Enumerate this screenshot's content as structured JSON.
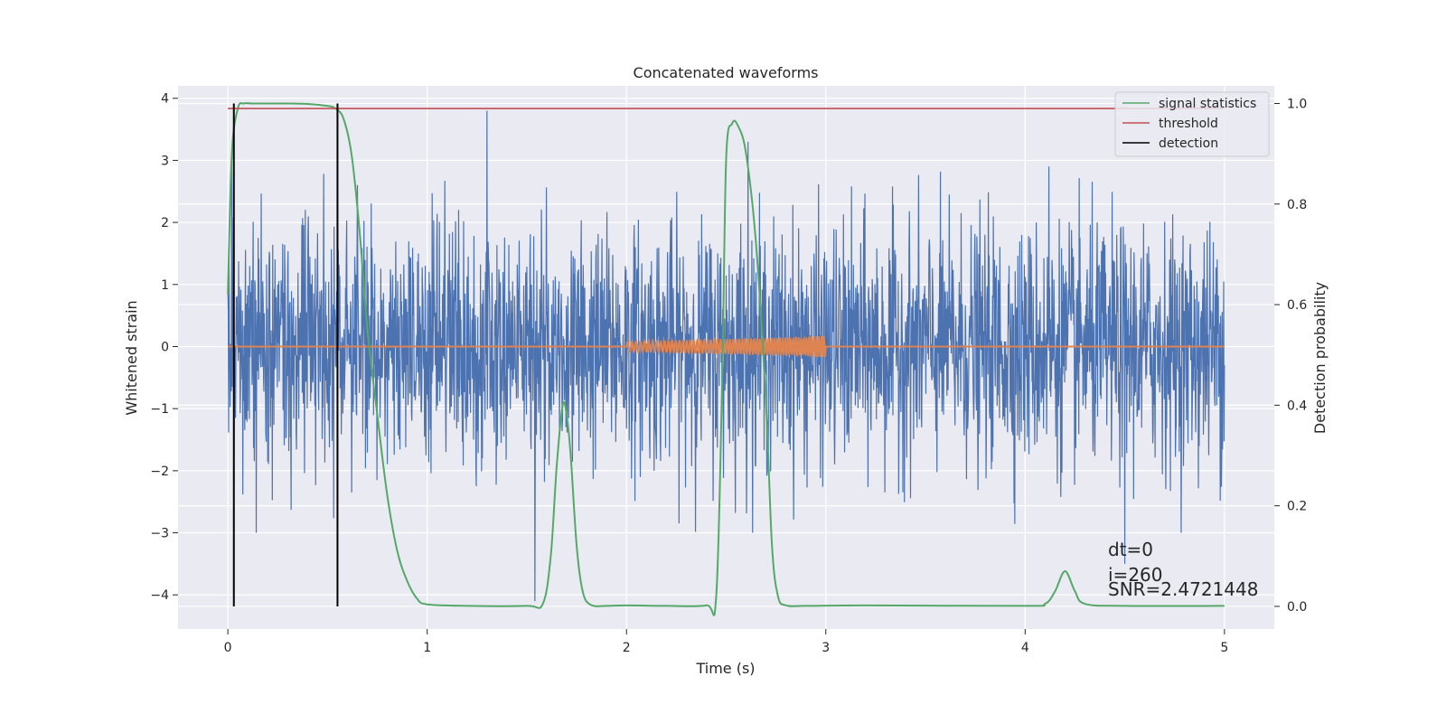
{
  "chart_data": {
    "type": "line",
    "title": "Concatenated waveforms",
    "xlabel": "Time (s)",
    "ylabel": "Whitened strain",
    "y2label": "Detection probability",
    "xlim": [
      -0.25,
      5.25
    ],
    "ylim": [
      -4.55,
      4.2
    ],
    "y2lim": [
      -0.045,
      1.035
    ],
    "xticks": [
      0,
      1,
      2,
      3,
      4,
      5
    ],
    "yticks": [
      -4,
      -3,
      -2,
      -1,
      0,
      1,
      2,
      3,
      4
    ],
    "y2ticks": [
      0.0,
      0.2,
      0.4,
      0.6,
      0.8,
      1.0
    ],
    "xtick_labels": [
      "0",
      "1",
      "2",
      "3",
      "4",
      "5"
    ],
    "ytick_labels": [
      "−4",
      "−3",
      "−2",
      "−1",
      "0",
      "1",
      "2",
      "3",
      "4"
    ],
    "y2tick_labels": [
      "0.0",
      "0.2",
      "0.4",
      "0.6",
      "0.8",
      "1.0"
    ],
    "grid": true,
    "legend_position": "top-right",
    "colors": {
      "strain": "#4c72b0",
      "template": "#dd8452",
      "signal_statistics": "#55a868",
      "threshold": "#c44e52",
      "detection": "#000000",
      "background": "#eaeaf2",
      "grid": "#ffffff"
    },
    "series": [
      {
        "name": "",
        "role": "whitened strain (noise)",
        "x_range": [
          0,
          5
        ],
        "typical_range": [
          -1.5,
          1.5
        ],
        "extremes": [
          [
            0.02,
            3.0
          ],
          [
            0.55,
            3.2
          ],
          [
            1.3,
            3.8
          ],
          [
            1.54,
            -4.1
          ],
          [
            2.61,
            3.3
          ],
          [
            4.5,
            -3.5
          ],
          [
            4.12,
            2.9
          ]
        ]
      },
      {
        "name": "",
        "role": "injected waveform",
        "x_range": [
          0,
          5
        ],
        "chirp_start": 2.0,
        "chirp_end": 3.0,
        "amplitude_start": 0.08,
        "amplitude_end": 0.17
      },
      {
        "name": "signal statistics",
        "axis": "right",
        "x": [
          0,
          0.02,
          0.05,
          0.08,
          0.12,
          0.2,
          0.3,
          0.4,
          0.5,
          0.54,
          0.58,
          0.62,
          0.66,
          0.7,
          0.75,
          0.8,
          0.85,
          0.9,
          0.95,
          1.0,
          1.2,
          1.5,
          1.58,
          1.62,
          1.65,
          1.68,
          1.7,
          1.72,
          1.75,
          1.78,
          1.82,
          1.9,
          2.0,
          2.2,
          2.4,
          2.45,
          2.48,
          2.5,
          2.53,
          2.56,
          2.6,
          2.65,
          2.7,
          2.73,
          2.76,
          2.8,
          2.9,
          3.2,
          4.0,
          4.1,
          4.15,
          4.2,
          4.25,
          4.3,
          4.5,
          5.0
        ],
        "y": [
          0.62,
          0.9,
          0.99,
          1.0,
          1.0,
          1.0,
          1.0,
          0.999,
          0.995,
          0.99,
          0.97,
          0.9,
          0.75,
          0.55,
          0.38,
          0.22,
          0.11,
          0.05,
          0.015,
          0.004,
          0.001,
          0.001,
          0.005,
          0.1,
          0.28,
          0.4,
          0.38,
          0.3,
          0.12,
          0.03,
          0.003,
          0.001,
          0.002,
          0.001,
          0.002,
          0.02,
          0.45,
          0.89,
          0.96,
          0.955,
          0.9,
          0.72,
          0.4,
          0.12,
          0.02,
          0.002,
          0.001,
          0.002,
          0.001,
          0.005,
          0.03,
          0.07,
          0.03,
          0.005,
          0.001,
          0.001
        ]
      },
      {
        "name": "threshold",
        "axis": "right",
        "x": [
          0,
          5
        ],
        "y": [
          0.99,
          0.99
        ]
      }
    ],
    "detections": {
      "name": "detection",
      "x": [
        0.03,
        0.55
      ]
    },
    "annotations": [
      "dt=0",
      "i=260",
      "SNR=2.4721448"
    ]
  }
}
